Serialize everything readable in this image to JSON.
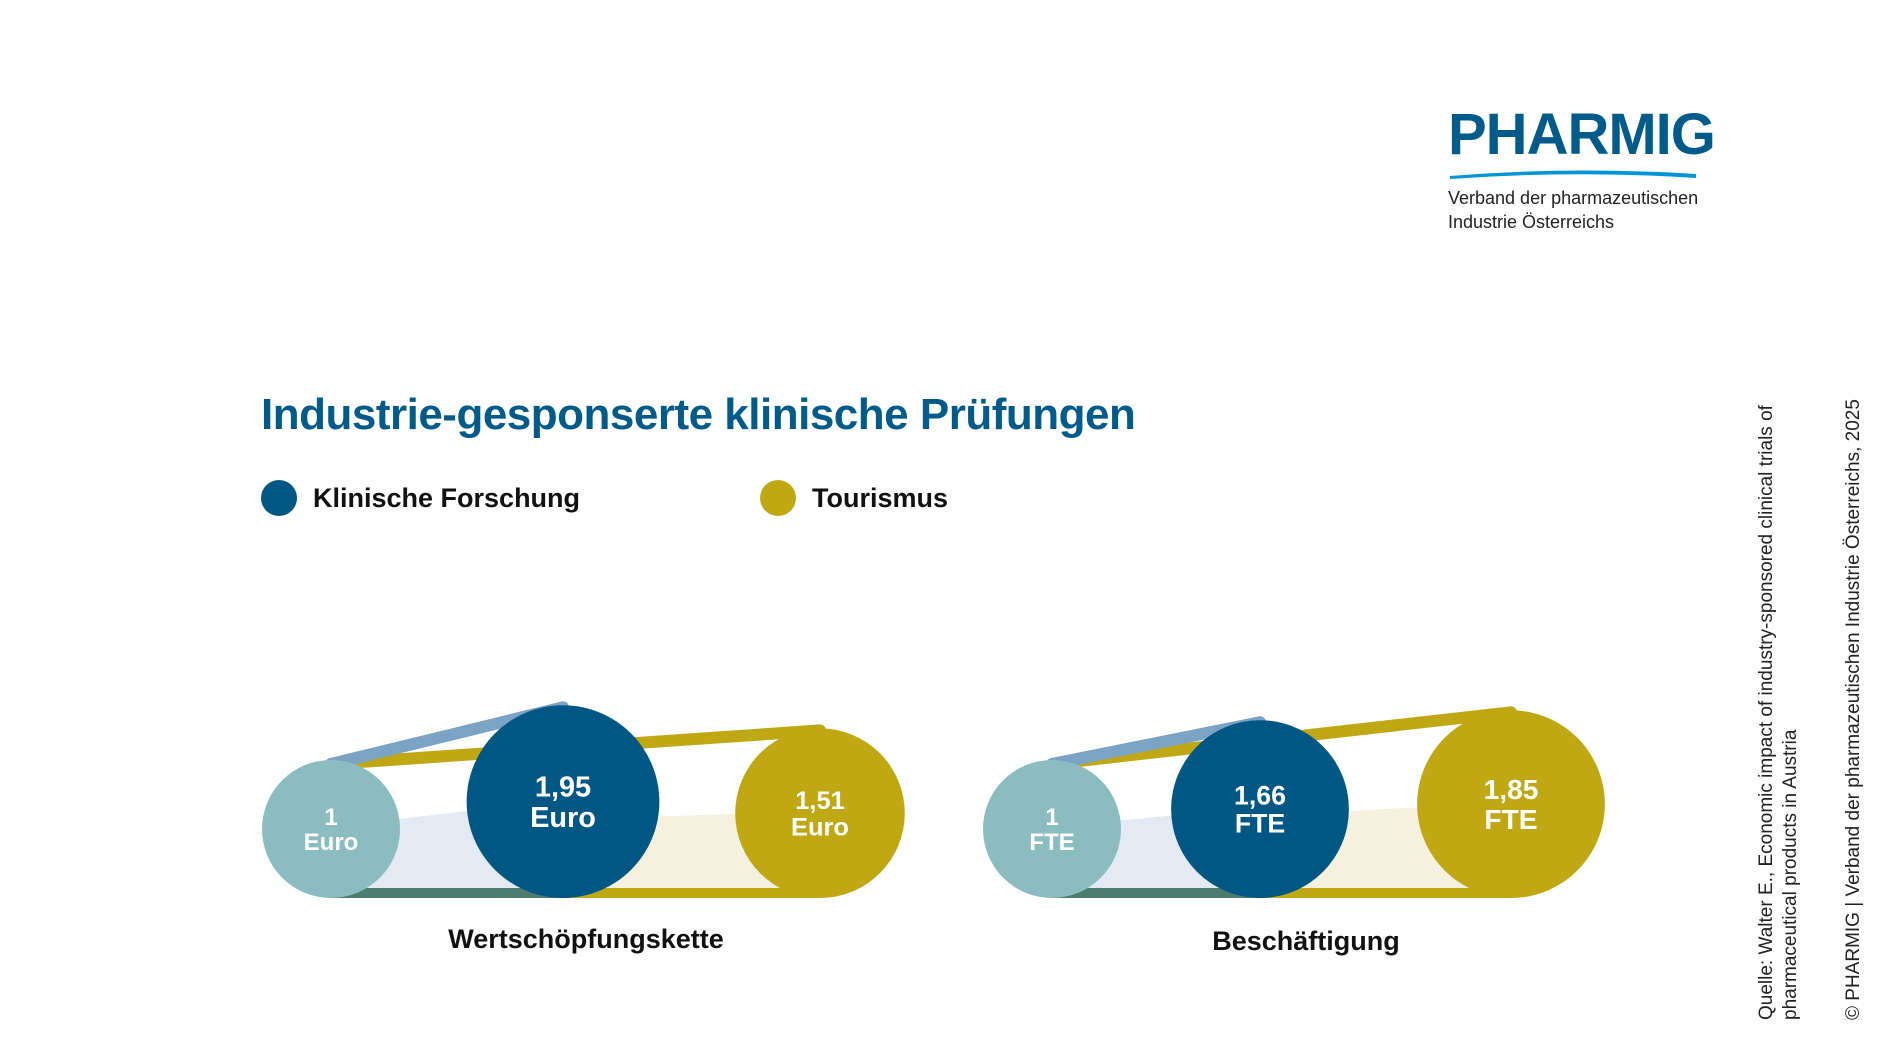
{
  "logo": {
    "wordmark": "PHARMIG",
    "subtitle_line1": "Verband der pharmazeutischen",
    "subtitle_line2": "Industrie Österreichs"
  },
  "colors": {
    "clinical": "#005783",
    "tourism": "#c0a714",
    "base": "#8bbdc0",
    "title": "#005b8a"
  },
  "chart_data": {
    "type": "bubble",
    "title": "Industrie-gesponserte klinische Prüfungen",
    "legend": [
      {
        "name": "Klinische Forschung",
        "color": "#005783"
      },
      {
        "name": "Tourismus",
        "color": "#c0a714"
      }
    ],
    "groups": [
      {
        "name": "Wertschöpfungskette",
        "unit": "Euro",
        "base": {
          "value": 1,
          "text": "1"
        },
        "series": [
          {
            "name": "Klinische Forschung",
            "value": 1.95,
            "text": "1,95"
          },
          {
            "name": "Tourismus",
            "value": 1.51,
            "text": "1,51"
          }
        ]
      },
      {
        "name": "Beschäftigung",
        "unit": "FTE",
        "base": {
          "value": 1,
          "text": "1"
        },
        "series": [
          {
            "name": "Klinische Forschung",
            "value": 1.66,
            "text": "1,66"
          },
          {
            "name": "Tourismus",
            "value": 1.85,
            "text": "1,85"
          }
        ]
      }
    ]
  },
  "source": {
    "line1": "Quelle: Walter E., Economic impact of industry-sponsored clinical trials of",
    "line2": "pharmaceutical products in Austria"
  },
  "copyright": "© PHARMIG | Verband der pharmazeutischen Industrie Österreichs, 2025"
}
